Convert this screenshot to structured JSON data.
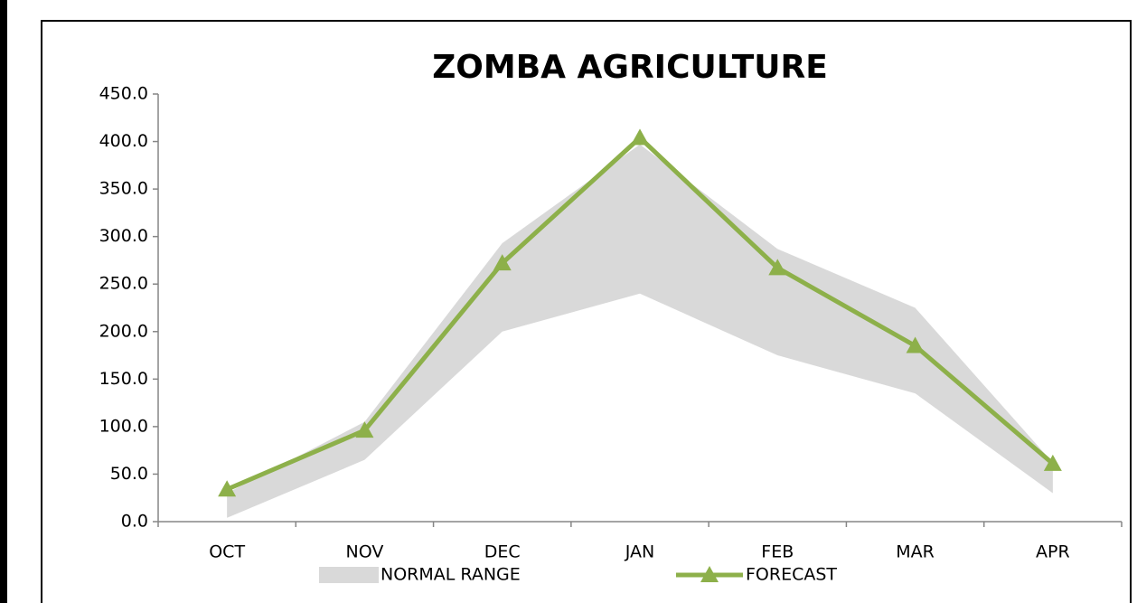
{
  "chart_data": {
    "type": "line",
    "title": "ZOMBA AGRICULTURE",
    "categories": [
      "OCT",
      "NOV",
      "DEC",
      "JAN",
      "FEB",
      "MAR",
      "APR"
    ],
    "ylim": [
      0,
      450
    ],
    "yticks": [
      {
        "value": 0,
        "label": "0.0"
      },
      {
        "value": 50,
        "label": "50.0"
      },
      {
        "value": 100,
        "label": "100.0"
      },
      {
        "value": 150,
        "label": "150.0"
      },
      {
        "value": 200,
        "label": "200.0"
      },
      {
        "value": 250,
        "label": "250.0"
      },
      {
        "value": 300,
        "label": "300.0"
      },
      {
        "value": 350,
        "label": "350.0"
      },
      {
        "value": 400,
        "label": "400.0"
      },
      {
        "value": 450,
        "label": "450.0"
      }
    ],
    "series": [
      {
        "name": "NORMAL RANGE",
        "type": "band",
        "color": "#d9d9d9",
        "lower": [
          4,
          65,
          200,
          240,
          175,
          135,
          30
        ],
        "upper": [
          30,
          105,
          293,
          397,
          287,
          225,
          62
        ]
      },
      {
        "name": "FORECAST",
        "type": "line",
        "color": "#8db04a",
        "values": [
          34,
          96,
          272,
          404,
          267,
          185,
          61
        ]
      }
    ],
    "legend": "bottom"
  }
}
